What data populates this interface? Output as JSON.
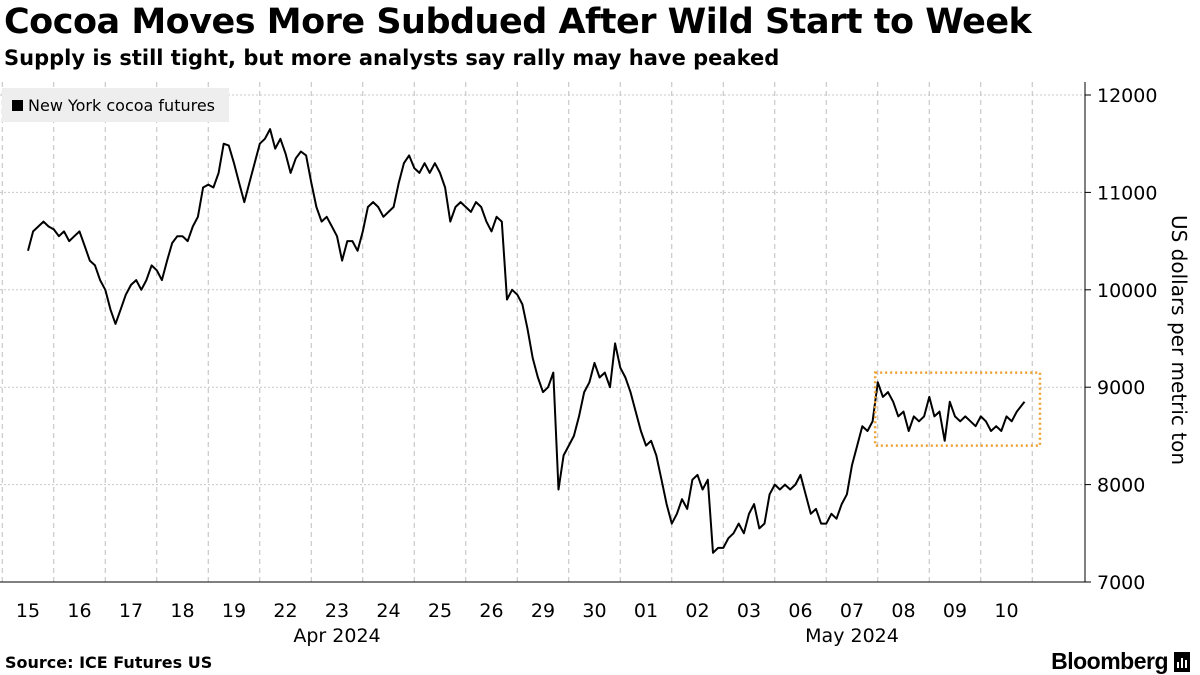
{
  "chart_data": {
    "type": "line",
    "title": "Cocoa Moves More Subdued After Wild Start to Week",
    "subtitle": "Supply is still tight, but more analysts say rally may have peaked",
    "ylabel": "US dollars per metric ton",
    "ylim": [
      7000,
      12000
    ],
    "yticks": [
      "12000",
      "11000",
      "10000",
      "9000",
      "8000",
      "7000"
    ],
    "grid": true,
    "legend_position": "top-left",
    "x_categories": [
      "15",
      "16",
      "17",
      "18",
      "19",
      "22",
      "23",
      "24",
      "25",
      "26",
      "29",
      "30",
      "01",
      "02",
      "03",
      "06",
      "07",
      "08",
      "09",
      "10"
    ],
    "month_labels": [
      {
        "label": "Apr 2024",
        "at": "23"
      },
      {
        "label": "May 2024",
        "at": "07"
      }
    ],
    "series": [
      {
        "name": "New York cocoa futures",
        "color": "#000000",
        "points": [
          [
            0.0,
            10400
          ],
          [
            0.1,
            10600
          ],
          [
            0.2,
            10650
          ],
          [
            0.3,
            10700
          ],
          [
            0.4,
            10650
          ],
          [
            0.5,
            10620
          ],
          [
            0.6,
            10550
          ],
          [
            0.7,
            10600
          ],
          [
            0.8,
            10500
          ],
          [
            0.9,
            10550
          ],
          [
            1.0,
            10600
          ],
          [
            1.1,
            10450
          ],
          [
            1.2,
            10300
          ],
          [
            1.3,
            10250
          ],
          [
            1.4,
            10100
          ],
          [
            1.5,
            10000
          ],
          [
            1.6,
            9800
          ],
          [
            1.7,
            9650
          ],
          [
            1.8,
            9800
          ],
          [
            1.9,
            9950
          ],
          [
            2.0,
            10050
          ],
          [
            2.1,
            10100
          ],
          [
            2.2,
            10000
          ],
          [
            2.3,
            10100
          ],
          [
            2.4,
            10250
          ],
          [
            2.5,
            10200
          ],
          [
            2.6,
            10100
          ],
          [
            2.7,
            10300
          ],
          [
            2.8,
            10480
          ],
          [
            2.9,
            10550
          ],
          [
            3.0,
            10550
          ],
          [
            3.1,
            10500
          ],
          [
            3.2,
            10650
          ],
          [
            3.3,
            10750
          ],
          [
            3.4,
            11050
          ],
          [
            3.5,
            11080
          ],
          [
            3.6,
            11050
          ],
          [
            3.7,
            11200
          ],
          [
            3.8,
            11500
          ],
          [
            3.9,
            11480
          ],
          [
            4.0,
            11300
          ],
          [
            4.1,
            11100
          ],
          [
            4.2,
            10900
          ],
          [
            4.3,
            11100
          ],
          [
            4.4,
            11300
          ],
          [
            4.5,
            11500
          ],
          [
            4.6,
            11550
          ],
          [
            4.7,
            11650
          ],
          [
            4.8,
            11450
          ],
          [
            4.9,
            11550
          ],
          [
            5.0,
            11400
          ],
          [
            5.1,
            11200
          ],
          [
            5.2,
            11350
          ],
          [
            5.3,
            11420
          ],
          [
            5.4,
            11380
          ],
          [
            5.5,
            11100
          ],
          [
            5.6,
            10850
          ],
          [
            5.7,
            10700
          ],
          [
            5.8,
            10750
          ],
          [
            5.9,
            10650
          ],
          [
            6.0,
            10550
          ],
          [
            6.1,
            10300
          ],
          [
            6.2,
            10500
          ],
          [
            6.3,
            10500
          ],
          [
            6.4,
            10400
          ],
          [
            6.5,
            10600
          ],
          [
            6.6,
            10850
          ],
          [
            6.7,
            10900
          ],
          [
            6.8,
            10850
          ],
          [
            6.9,
            10750
          ],
          [
            7.0,
            10800
          ],
          [
            7.1,
            10850
          ],
          [
            7.2,
            11100
          ],
          [
            7.3,
            11300
          ],
          [
            7.4,
            11380
          ],
          [
            7.5,
            11250
          ],
          [
            7.6,
            11200
          ],
          [
            7.7,
            11300
          ],
          [
            7.8,
            11200
          ],
          [
            7.9,
            11300
          ],
          [
            8.0,
            11200
          ],
          [
            8.1,
            11050
          ],
          [
            8.2,
            10700
          ],
          [
            8.3,
            10850
          ],
          [
            8.4,
            10900
          ],
          [
            8.5,
            10850
          ],
          [
            8.6,
            10800
          ],
          [
            8.7,
            10900
          ],
          [
            8.8,
            10850
          ],
          [
            8.9,
            10700
          ],
          [
            9.0,
            10600
          ],
          [
            9.1,
            10750
          ],
          [
            9.2,
            10700
          ],
          [
            9.3,
            9900
          ],
          [
            9.4,
            10000
          ],
          [
            9.5,
            9950
          ],
          [
            9.6,
            9850
          ],
          [
            9.7,
            9600
          ],
          [
            9.8,
            9300
          ],
          [
            9.9,
            9100
          ],
          [
            10.0,
            8950
          ],
          [
            10.1,
            9000
          ],
          [
            10.2,
            9150
          ],
          [
            10.3,
            7950
          ],
          [
            10.4,
            8300
          ],
          [
            10.5,
            8400
          ],
          [
            10.6,
            8500
          ],
          [
            10.7,
            8700
          ],
          [
            10.8,
            8950
          ],
          [
            10.9,
            9050
          ],
          [
            11.0,
            9250
          ],
          [
            11.1,
            9100
          ],
          [
            11.2,
            9150
          ],
          [
            11.3,
            9000
          ],
          [
            11.4,
            9450
          ],
          [
            11.5,
            9200
          ],
          [
            11.6,
            9100
          ],
          [
            11.7,
            8950
          ],
          [
            11.8,
            8750
          ],
          [
            11.9,
            8550
          ],
          [
            12.0,
            8400
          ],
          [
            12.1,
            8450
          ],
          [
            12.2,
            8300
          ],
          [
            12.3,
            8050
          ],
          [
            12.4,
            7800
          ],
          [
            12.5,
            7600
          ],
          [
            12.6,
            7700
          ],
          [
            12.7,
            7850
          ],
          [
            12.8,
            7750
          ],
          [
            12.9,
            8050
          ],
          [
            13.0,
            8100
          ],
          [
            13.1,
            7950
          ],
          [
            13.2,
            8050
          ],
          [
            13.3,
            7300
          ],
          [
            13.4,
            7350
          ],
          [
            13.5,
            7350
          ],
          [
            13.6,
            7450
          ],
          [
            13.7,
            7500
          ],
          [
            13.8,
            7600
          ],
          [
            13.9,
            7500
          ],
          [
            14.0,
            7700
          ],
          [
            14.1,
            7800
          ],
          [
            14.2,
            7550
          ],
          [
            14.3,
            7600
          ],
          [
            14.4,
            7900
          ],
          [
            14.5,
            8000
          ],
          [
            14.6,
            7950
          ],
          [
            14.7,
            8000
          ],
          [
            14.8,
            7950
          ],
          [
            14.9,
            8000
          ],
          [
            15.0,
            8100
          ],
          [
            15.1,
            7900
          ],
          [
            15.2,
            7700
          ],
          [
            15.3,
            7750
          ],
          [
            15.4,
            7600
          ],
          [
            15.5,
            7600
          ],
          [
            15.6,
            7700
          ],
          [
            15.7,
            7650
          ],
          [
            15.8,
            7800
          ],
          [
            15.9,
            7900
          ],
          [
            16.0,
            8200
          ],
          [
            16.1,
            8400
          ],
          [
            16.2,
            8600
          ],
          [
            16.3,
            8550
          ],
          [
            16.4,
            8650
          ],
          [
            16.5,
            9050
          ],
          [
            16.6,
            8900
          ],
          [
            16.7,
            8950
          ],
          [
            16.8,
            8850
          ],
          [
            16.9,
            8700
          ],
          [
            17.0,
            8750
          ],
          [
            17.1,
            8550
          ],
          [
            17.2,
            8700
          ],
          [
            17.3,
            8650
          ],
          [
            17.4,
            8700
          ],
          [
            17.5,
            8900
          ],
          [
            17.6,
            8700
          ],
          [
            17.7,
            8750
          ],
          [
            17.8,
            8450
          ],
          [
            17.9,
            8850
          ],
          [
            18.0,
            8700
          ],
          [
            18.1,
            8650
          ],
          [
            18.2,
            8700
          ],
          [
            18.3,
            8650
          ],
          [
            18.4,
            8600
          ],
          [
            18.5,
            8700
          ],
          [
            18.6,
            8650
          ],
          [
            18.7,
            8550
          ],
          [
            18.8,
            8600
          ],
          [
            18.9,
            8550
          ],
          [
            19.0,
            8700
          ],
          [
            19.1,
            8650
          ],
          [
            19.2,
            8750
          ],
          [
            19.35,
            8850
          ]
        ]
      }
    ],
    "annotations": [
      {
        "type": "dotted-box",
        "color": "#f0a030",
        "x_from": 16.45,
        "x_to": 19.65,
        "y_from": 8400,
        "y_to": 9150
      }
    ],
    "source": "Source: ICE Futures US",
    "brand": "Bloomberg"
  }
}
